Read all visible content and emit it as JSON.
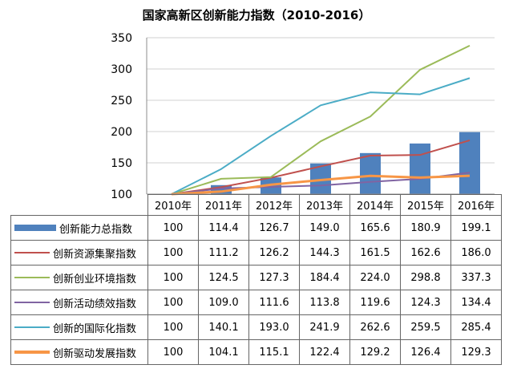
{
  "chart_data": {
    "type": "bar+line",
    "title": "国家高新区创新能力指数（2010-2016）",
    "categories": [
      "2010年",
      "2011年",
      "2012年",
      "2013年",
      "2014年",
      "2015年",
      "2016年"
    ],
    "ylim": [
      100,
      350
    ],
    "yticks": [
      "100",
      "150",
      "200",
      "250",
      "300",
      "350"
    ],
    "grid": true,
    "legend": "table",
    "series": [
      {
        "name": "创新能力总指数",
        "kind": "bar",
        "color": "#4f81bd",
        "values": [
          100,
          114.4,
          126.7,
          149.0,
          165.6,
          180.9,
          199.1
        ],
        "labels": [
          "100",
          "114.4",
          "126.7",
          "149.0",
          "165.6",
          "180.9",
          "199.1"
        ]
      },
      {
        "name": "创新资源集聚指数",
        "kind": "line",
        "color": "#c0504d",
        "values": [
          100,
          111.2,
          126.2,
          144.3,
          161.5,
          162.6,
          186.0
        ],
        "labels": [
          "100",
          "111.2",
          "126.2",
          "144.3",
          "161.5",
          "162.6",
          "186.0"
        ]
      },
      {
        "name": "创新创业环境指数",
        "kind": "line",
        "color": "#9bbb59",
        "values": [
          100,
          124.5,
          127.3,
          184.4,
          224.0,
          298.8,
          337.3
        ],
        "labels": [
          "100",
          "124.5",
          "127.3",
          "184.4",
          "224.0",
          "298.8",
          "337.3"
        ]
      },
      {
        "name": "创新活动绩效指数",
        "kind": "line",
        "color": "#8064a2",
        "values": [
          100,
          109.0,
          111.6,
          113.8,
          119.6,
          124.3,
          134.4
        ],
        "labels": [
          "100",
          "109.0",
          "111.6",
          "113.8",
          "119.6",
          "124.3",
          "134.4"
        ]
      },
      {
        "name": "创新的国际化指数",
        "kind": "line",
        "color": "#4bacc6",
        "values": [
          100,
          140.1,
          193.0,
          241.9,
          262.6,
          259.5,
          285.4
        ],
        "labels": [
          "100",
          "140.1",
          "193.0",
          "241.9",
          "262.6",
          "259.5",
          "285.4"
        ]
      },
      {
        "name": "创新驱动发展指数",
        "kind": "line",
        "color": "#f79646",
        "thick": true,
        "values": [
          100,
          104.1,
          115.1,
          122.4,
          129.2,
          126.4,
          129.3
        ],
        "labels": [
          "100",
          "104.1",
          "115.1",
          "122.4",
          "129.2",
          "126.4",
          "129.3"
        ]
      }
    ]
  }
}
